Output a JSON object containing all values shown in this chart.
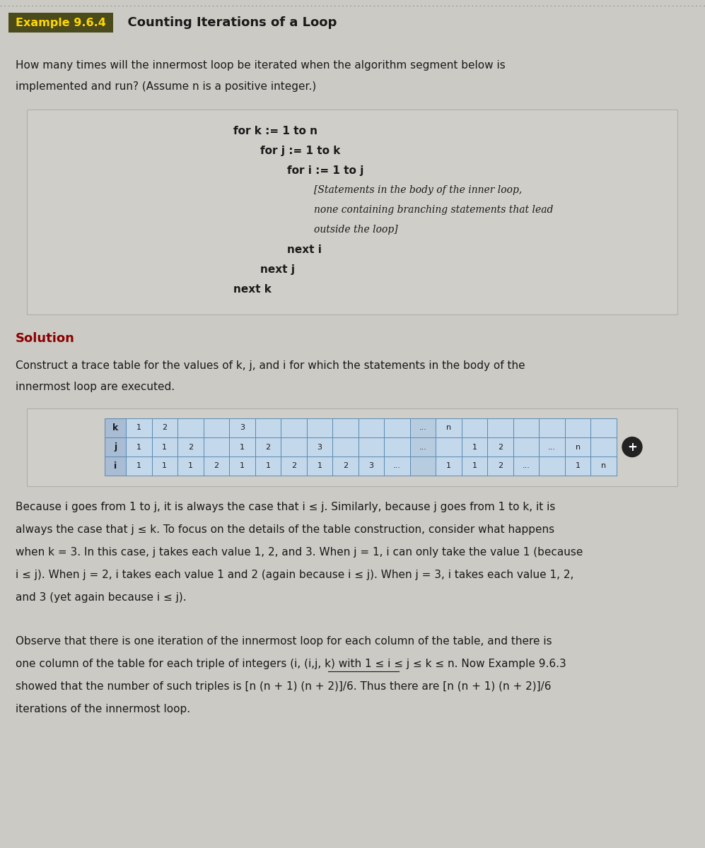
{
  "title_box_color": "#4a4a1a",
  "title_box_text": "Example 9.6.4",
  "title_box_text_color": "#FFD700",
  "title_text": "  Counting Iterations of a Loop",
  "title_text_color": "#1a1a1a",
  "page_bg": "#cccac4",
  "content_bg": "#d8d6d0",
  "intro_text_line1": "How many times will the innermost loop be iterated when the algorithm segment below is",
  "intro_text_line2": "implemented and run? (Assume n is a positive integer.)",
  "code_lines": [
    {
      "text": "for k := 1 to n",
      "indent": 0,
      "italic": false,
      "bold": true
    },
    {
      "text": "for j := 1 to k",
      "indent": 1,
      "italic": false,
      "bold": true
    },
    {
      "text": "for i := 1 to j",
      "indent": 2,
      "italic": false,
      "bold": true
    },
    {
      "text": "[Statements in the body of the inner loop,",
      "indent": 3,
      "italic": true,
      "bold": false
    },
    {
      "text": "none containing branching statements that lead",
      "indent": 3,
      "italic": true,
      "bold": false
    },
    {
      "text": "outside the loop]",
      "indent": 3,
      "italic": true,
      "bold": false
    },
    {
      "text": "next i",
      "indent": 2,
      "italic": false,
      "bold": true
    },
    {
      "text": "next j",
      "indent": 1,
      "italic": false,
      "bold": true
    },
    {
      "text": "next k",
      "indent": 0,
      "italic": false,
      "bold": true
    }
  ],
  "solution_label": "Solution",
  "solution_color": "#8B0000",
  "solution_text_line1": "Construct a trace table for the values of k, j, and i for which the statements in the body of the",
  "solution_text_line2": "innermost loop are executed.",
  "table_header": [
    "k",
    "j",
    "i"
  ],
  "table_k_row": [
    "1",
    "2",
    "",
    "",
    "3",
    "",
    "",
    "",
    "",
    "",
    "",
    "...",
    "n",
    "",
    "",
    "",
    "",
    "",
    ""
  ],
  "table_j_row": [
    "1",
    "1",
    "2",
    "",
    "1",
    "2",
    "",
    "3",
    "",
    "",
    "",
    "...",
    "",
    "1",
    "2",
    "",
    "...",
    "n",
    ""
  ],
  "table_i_row": [
    "1",
    "1",
    "1",
    "2",
    "1",
    "1",
    "2",
    "1",
    "2",
    "3",
    "...",
    "",
    "1",
    "1",
    "2",
    "...",
    "",
    "1",
    "n"
  ],
  "body_text1_lines": [
    "Because i goes from 1 to j, it is always the case that i ≤ j. Similarly, because j goes from 1 to k, it is",
    "always the case that j ≤ k. To focus on the details of the table construction, consider what happens",
    "when k = 3. In this case, j takes each value 1, 2, and 3. When j = 1, i can only take the value 1 (because",
    "i ≤ j). When j = 2, i takes each value 1 and 2 (again because i ≤ j). When j = 3, i takes each value 1, 2,",
    "and 3 (yet again because i ≤ j)."
  ],
  "body_text2_lines": [
    "Observe that there is one iteration of the innermost loop for each column of the table, and there is",
    "one column of the table for each triple of integers (i, (i,j, k) with 1 ≤ i ≤ j ≤ k ≤ n. Now Example 9.6.3",
    "showed that the number of such triples is [n (n + 1) (n + 2)]/6. Thus there are [n (n + 1) (n + 2)]/6",
    "iterations of the innermost loop."
  ],
  "table_bg_light": "#c4d8ec",
  "table_bg_dark": "#b8cce0",
  "table_border": "#5a8ab0",
  "header_bg": "#a8bcd4",
  "dot_border": "#aaaaaa"
}
